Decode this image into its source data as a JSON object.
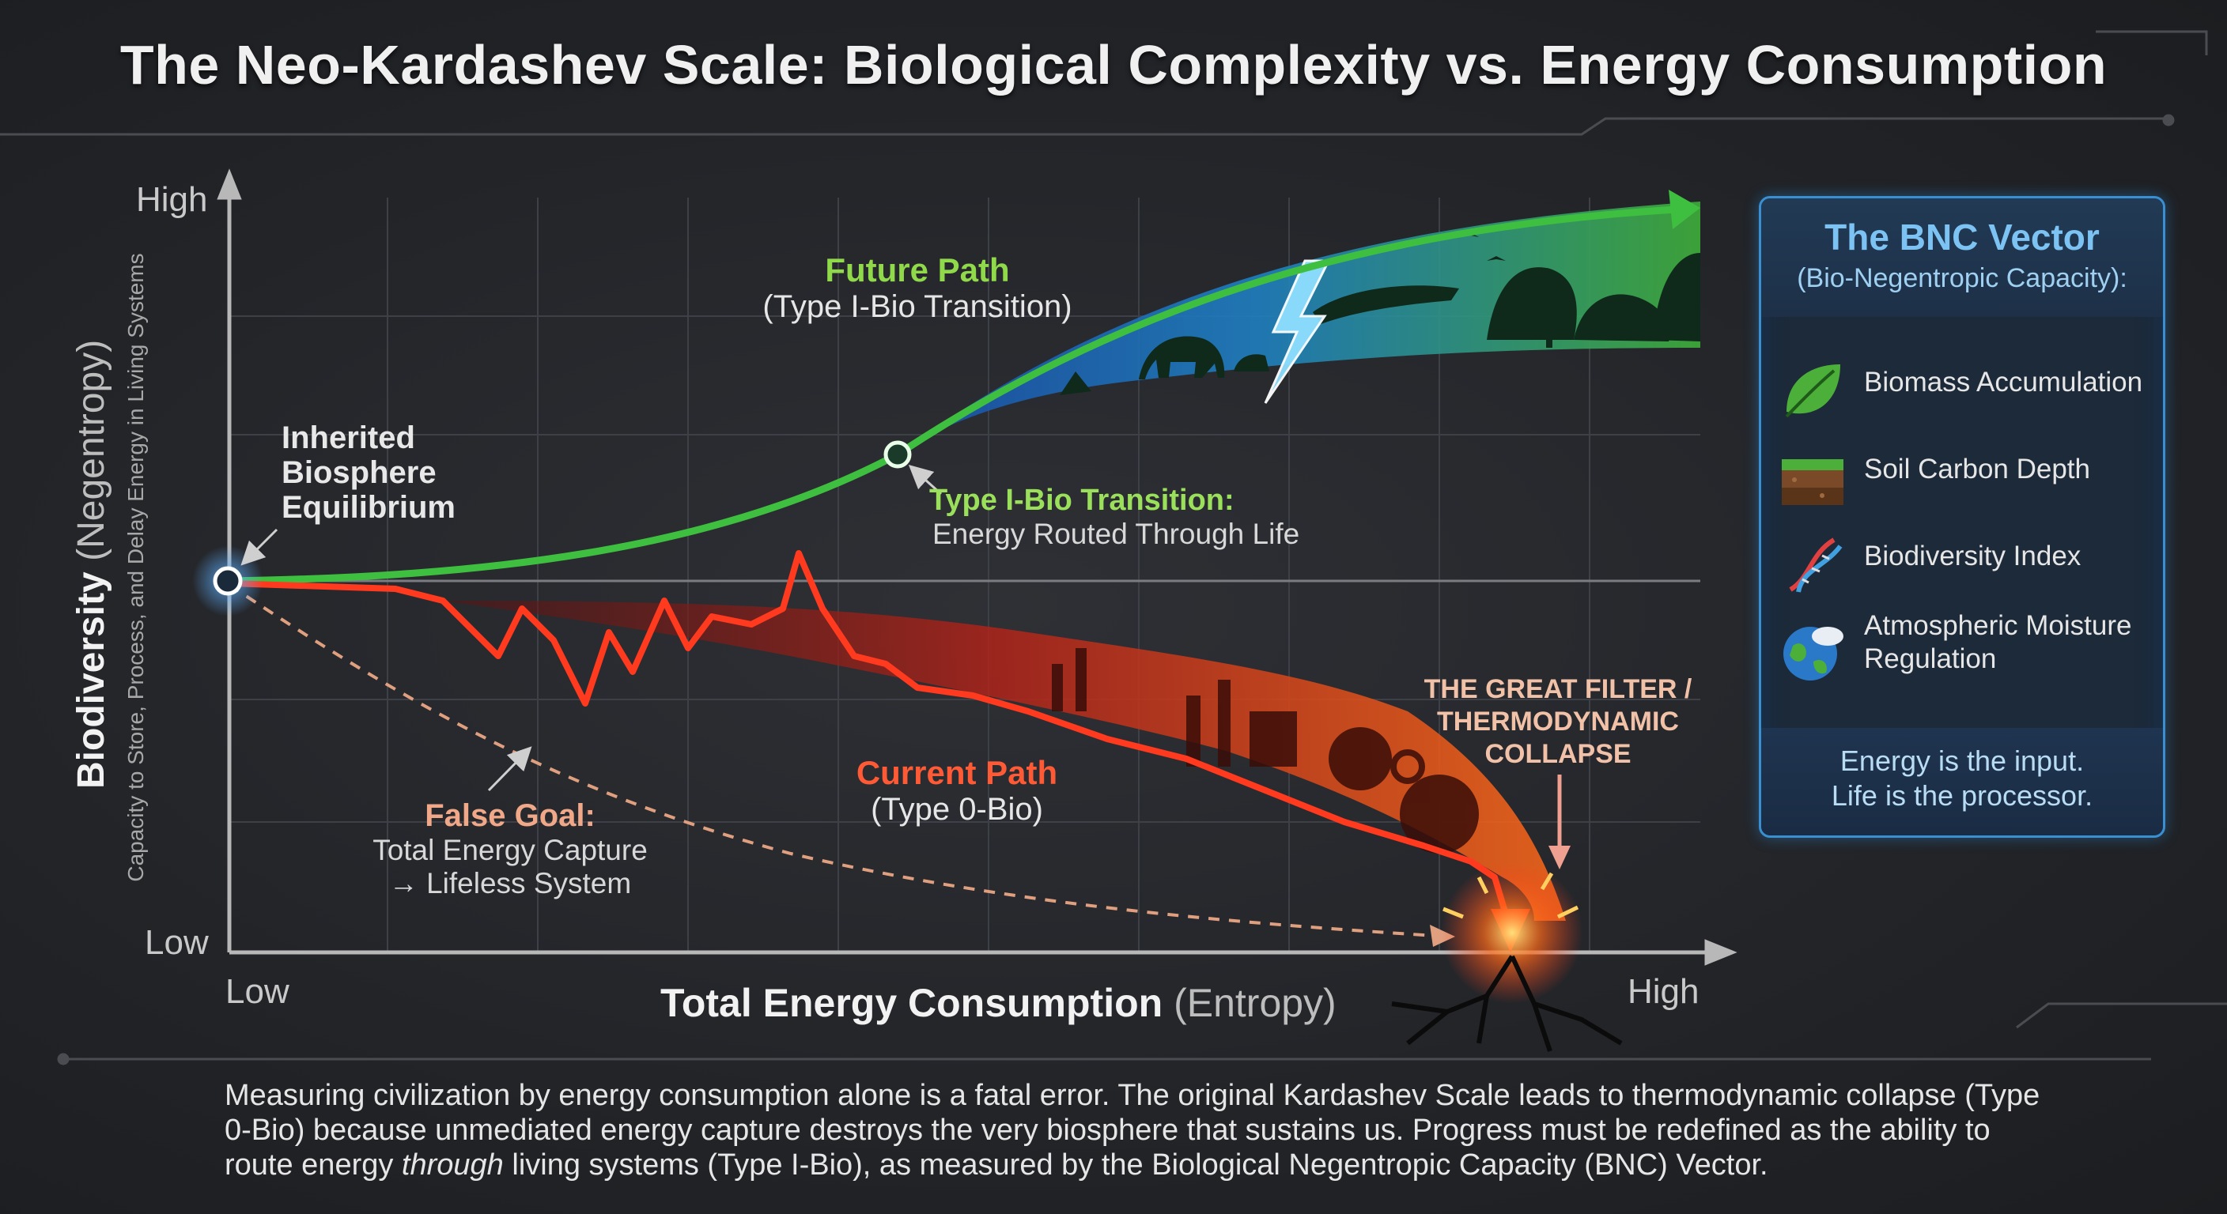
{
  "title": "The Neo-Kardashev Scale: Biological Complexity vs. Energy Consumption",
  "axes": {
    "y_high": "High",
    "y_low": "Low",
    "x_low": "Low",
    "x_high": "High",
    "x_title_bold": "Total Energy Consumption",
    "x_title_rest": "(Entropy)",
    "y_title_bold": "Biodiversity",
    "y_title_rest": "(Negentropy)",
    "y_subtitle": "Capacity to Store, Process, and Delay Energy in Living Systems"
  },
  "annotations": {
    "inherited": [
      "Inherited",
      "Biosphere",
      "Equilibrium"
    ],
    "future_title": "Future Path",
    "future_sub": "(Type I-Bio Transition)",
    "transition_title": "Type I-Bio Transition:",
    "transition_sub": "Energy Routed Through Life",
    "current_title": "Current Path",
    "current_sub": "(Type 0-Bio)",
    "false_title": "False Goal:",
    "false_line1": "Total Energy Capture",
    "false_line2": "→ Lifeless System",
    "filter": [
      "THE GREAT FILTER /",
      "THERMODYNAMIC",
      "COLLAPSE"
    ]
  },
  "bnc": {
    "title": "The BNC Vector",
    "subtitle": "(Bio-Negentropic Capacity):",
    "items": [
      {
        "label": "Biomass Accumulation",
        "icon": "leaf-icon"
      },
      {
        "label": "Soil Carbon Depth",
        "icon": "soil-icon"
      },
      {
        "label": "Biodiversity Index",
        "icon": "dna-icon"
      },
      {
        "label": "Atmospheric Moisture Regulation",
        "icon": "earth-cloud-icon"
      }
    ],
    "footer_line1": "Energy is the input.",
    "footer_line2": "Life is the processor."
  },
  "caption": {
    "part1": "Measuring civilization by energy consumption alone is a fatal error. The original Kardashev Scale leads to thermodynamic collapse (Type 0-Bio) because unmediated energy capture destroys the very biosphere that sustains us. Progress must be redefined as the ability to route energy ",
    "emphasis": "through",
    "part2": " living systems (Type I-Bio), as measured by the Biological Negentropic Capacity (BNC) Vector."
  },
  "colors": {
    "future_path": "#3fbf3f",
    "current_path": "#ff3a1e",
    "false_goal": "#e0a080",
    "bnc_border": "#3a8fd0"
  }
}
